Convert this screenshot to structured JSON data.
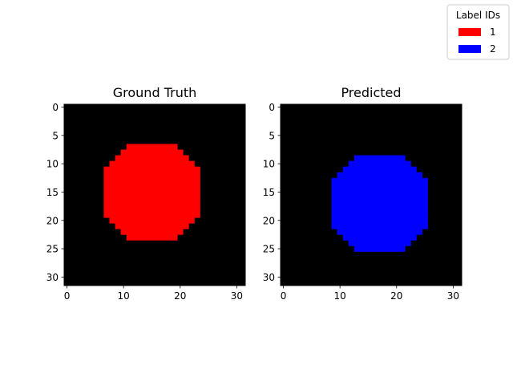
{
  "legend": {
    "title": "Label IDs",
    "placement": "top-right",
    "entries": [
      {
        "label": "1",
        "color": "#ff0000"
      },
      {
        "label": "2",
        "color": "#0000ff"
      }
    ]
  },
  "chart_data": [
    {
      "type": "heatmap",
      "title": "Ground Truth",
      "grid_size": [
        32,
        32
      ],
      "background_color": "#000000",
      "label_id": 1,
      "color": "#ff0000",
      "xlabel": "",
      "ylabel": "",
      "xlim": [
        -0.5,
        31.5
      ],
      "ylim": [
        31.5,
        -0.5
      ],
      "xticks": [
        0,
        10,
        20,
        30
      ],
      "yticks": [
        0,
        5,
        10,
        15,
        20,
        25,
        30
      ],
      "row_spans": [
        [
          7,
          11,
          19
        ],
        [
          8,
          10,
          20
        ],
        [
          9,
          9,
          21
        ],
        [
          10,
          8,
          22
        ],
        [
          11,
          7,
          23
        ],
        [
          12,
          7,
          23
        ],
        [
          13,
          7,
          23
        ],
        [
          14,
          7,
          23
        ],
        [
          15,
          7,
          23
        ],
        [
          16,
          7,
          23
        ],
        [
          17,
          7,
          23
        ],
        [
          18,
          7,
          23
        ],
        [
          19,
          7,
          23
        ],
        [
          20,
          8,
          22
        ],
        [
          21,
          9,
          21
        ],
        [
          22,
          10,
          20
        ],
        [
          23,
          11,
          19
        ]
      ]
    },
    {
      "type": "heatmap",
      "title": "Predicted",
      "grid_size": [
        32,
        32
      ],
      "background_color": "#000000",
      "label_id": 2,
      "color": "#0000ff",
      "xlabel": "",
      "ylabel": "",
      "xlim": [
        -0.5,
        31.5
      ],
      "ylim": [
        31.5,
        -0.5
      ],
      "xticks": [
        0,
        10,
        20,
        30
      ],
      "yticks": [
        0,
        5,
        10,
        15,
        20,
        25,
        30
      ],
      "row_spans": [
        [
          9,
          13,
          21
        ],
        [
          10,
          12,
          22
        ],
        [
          11,
          11,
          23
        ],
        [
          12,
          10,
          24
        ],
        [
          13,
          9,
          25
        ],
        [
          14,
          9,
          25
        ],
        [
          15,
          9,
          25
        ],
        [
          16,
          9,
          25
        ],
        [
          17,
          9,
          25
        ],
        [
          18,
          9,
          25
        ],
        [
          19,
          9,
          25
        ],
        [
          20,
          9,
          25
        ],
        [
          21,
          9,
          25
        ],
        [
          22,
          10,
          24
        ],
        [
          23,
          11,
          23
        ],
        [
          24,
          12,
          22
        ],
        [
          25,
          13,
          21
        ]
      ]
    }
  ]
}
